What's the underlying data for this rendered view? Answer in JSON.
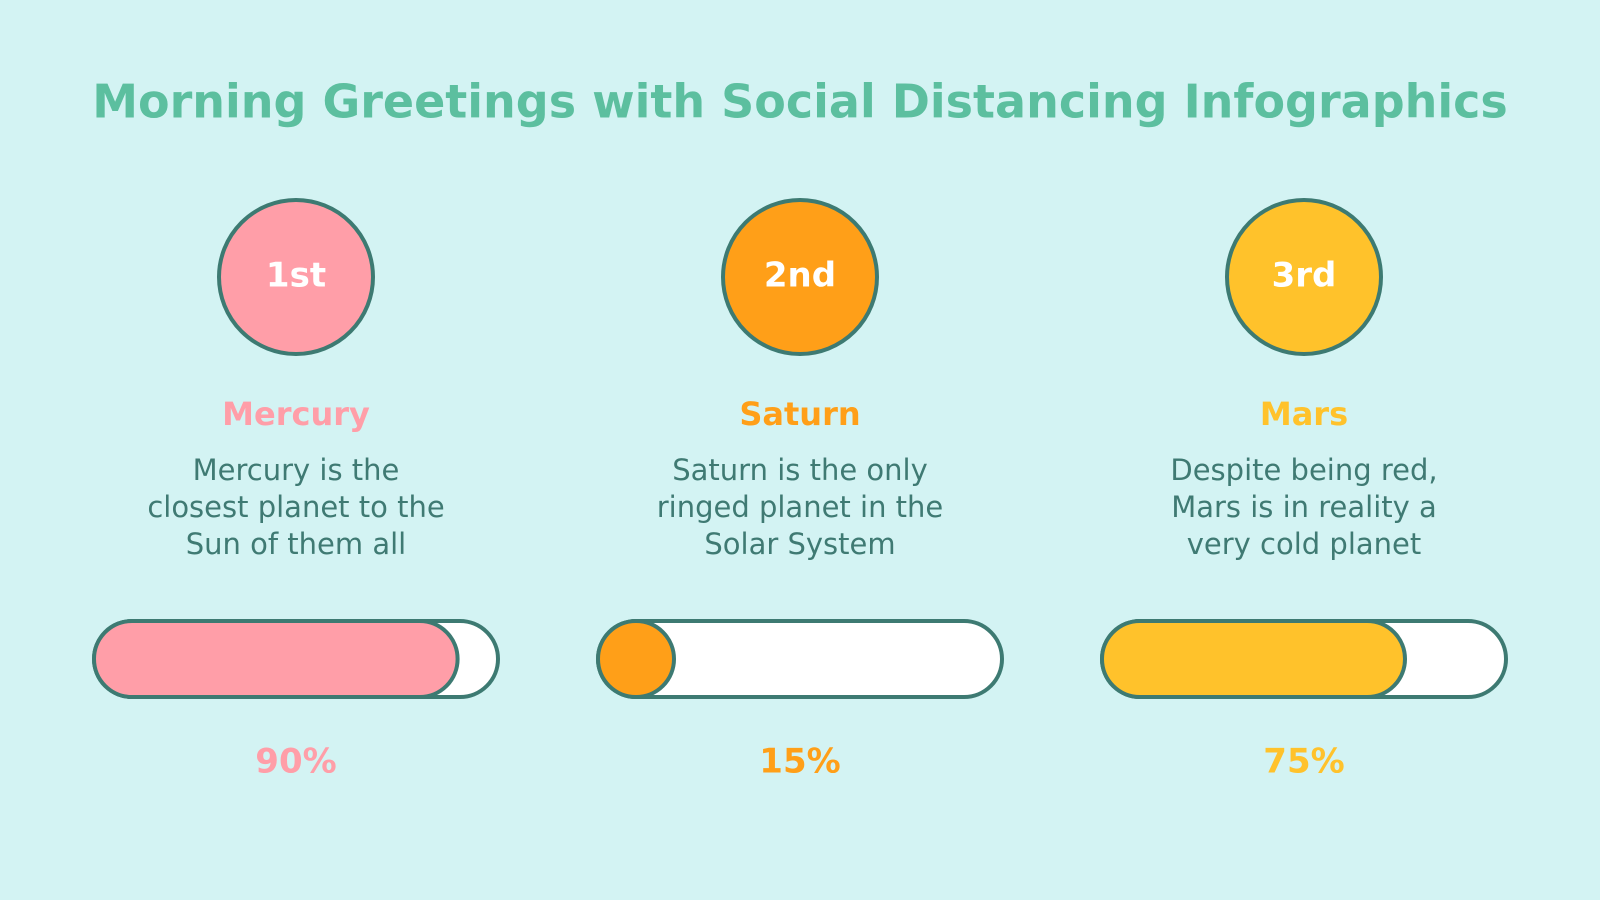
{
  "title": "Morning Greetings with Social Distancing Infographics",
  "items": [
    {
      "rank": "1st",
      "name": "Mercury",
      "description": [
        "Mercury is the",
        "closest planet to the",
        "Sun of them all"
      ],
      "value": 90,
      "value_label": "90%",
      "color": "#ff9ea8"
    },
    {
      "rank": "2nd",
      "name": "Saturn",
      "description": [
        "Saturn is the only",
        "ringed planet in the",
        "Solar System"
      ],
      "value": 15,
      "value_label": "15%",
      "color": "#ff9f18"
    },
    {
      "rank": "3rd",
      "name": "Mars",
      "description": [
        "Despite being red,",
        "Mars is in reality a",
        "very cold planet"
      ],
      "value": 75,
      "value_label": "75%",
      "color": "#ffc22b"
    }
  ]
}
